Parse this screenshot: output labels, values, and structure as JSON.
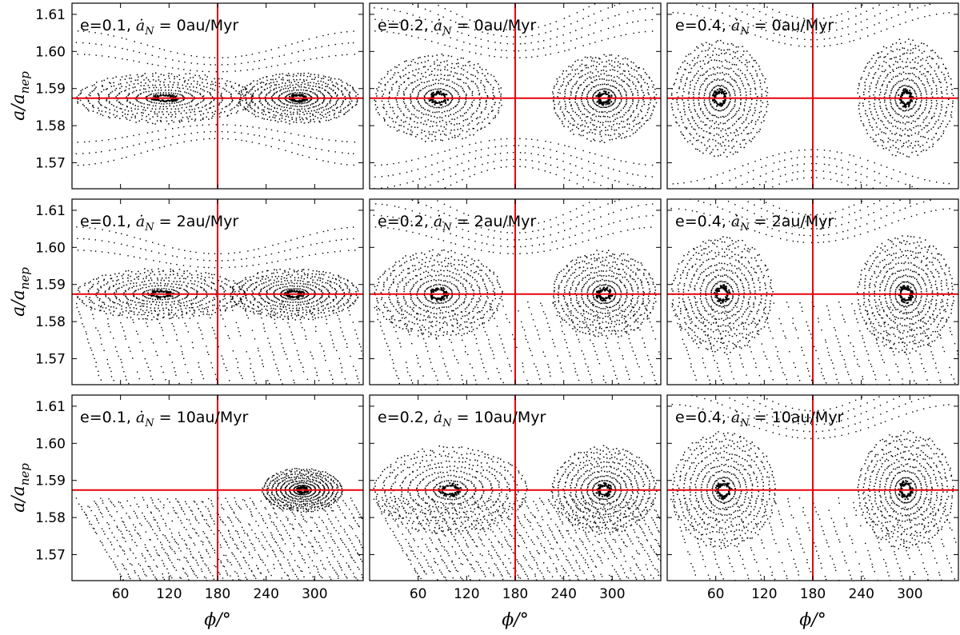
{
  "figure": {
    "ylabel": "a/a_nep",
    "ylabel_main": "a/a",
    "ylabel_sub": "nep",
    "xlabel": "ϕ/°",
    "colors": {
      "reference_line": "#e8000b",
      "points": "#000000"
    }
  },
  "chart_data": {
    "type": "scatter",
    "layout": "3x3 grid",
    "x_axis": {
      "label": "ϕ/°",
      "range": [
        0,
        360
      ],
      "ticks": [
        60,
        120,
        180,
        240,
        300
      ],
      "tick_labels": [
        "60",
        "120",
        "180",
        "240",
        "300"
      ]
    },
    "y_axis": {
      "label": "a/a_nep",
      "range": [
        1.563,
        1.613
      ],
      "ticks": [
        1.57,
        1.58,
        1.59,
        1.6,
        1.61
      ],
      "tick_labels": [
        "1.57",
        "1.58",
        "1.59",
        "1.60",
        "1.61"
      ]
    },
    "reference_lines": {
      "vertical_x": 180,
      "horizontal_y": 1.5874
    },
    "panels": [
      {
        "id": "p11",
        "e": "0.1",
        "adot": "0",
        "label": "e=0.1,",
        "rate": "0au/Myr",
        "island_centers": [
          115,
          280
        ],
        "libration_width": 0.007,
        "drift": "none"
      },
      {
        "id": "p12",
        "e": "0.2",
        "adot": "0",
        "label": "e=0.2,",
        "rate": "0au/Myr",
        "island_centers": [
          85,
          290
        ],
        "libration_width": 0.012,
        "drift": "none"
      },
      {
        "id": "p13",
        "e": "0.4",
        "adot": "0",
        "label": "e=0.4,",
        "rate": "0au/Myr",
        "island_centers": [
          65,
          295
        ],
        "libration_width": 0.016,
        "drift": "none"
      },
      {
        "id": "p21",
        "e": "0.1",
        "adot": "2",
        "label": "e=0.1,",
        "rate": "2au/Myr",
        "island_centers": [
          110,
          275
        ],
        "libration_width": 0.007,
        "drift": "below"
      },
      {
        "id": "p22",
        "e": "0.2",
        "adot": "2",
        "label": "e=0.2,",
        "rate": "2au/Myr",
        "island_centers": [
          85,
          290
        ],
        "libration_width": 0.012,
        "drift": "below"
      },
      {
        "id": "p23",
        "e": "0.4",
        "adot": "2",
        "label": "e=0.4,",
        "rate": "2au/Myr",
        "island_centers": [
          68,
          295
        ],
        "libration_width": 0.016,
        "drift": "below"
      },
      {
        "id": "p31",
        "e": "0.1",
        "adot": "10",
        "label": "e=0.1,",
        "rate": "10au/Myr",
        "island_centers": [
          285
        ],
        "libration_width": 0.006,
        "drift": "strong"
      },
      {
        "id": "p32",
        "e": "0.2",
        "adot": "10",
        "label": "e=0.2,",
        "rate": "10au/Myr",
        "island_centers": [
          100,
          290
        ],
        "libration_width": 0.012,
        "drift": "strong"
      },
      {
        "id": "p33",
        "e": "0.4",
        "adot": "10",
        "label": "e=0.4,",
        "rate": "10au/Myr",
        "island_centers": [
          70,
          295
        ],
        "libration_width": 0.016,
        "drift": "below"
      }
    ]
  }
}
